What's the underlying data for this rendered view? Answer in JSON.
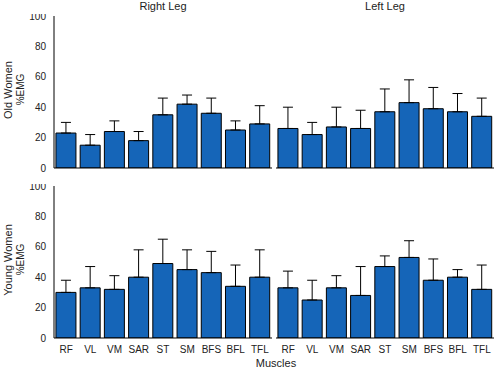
{
  "column_titles": [
    "Right Leg",
    "Left Leg"
  ],
  "row_titles": [
    "Old Women",
    "Young Women"
  ],
  "y_label": "%EMG",
  "x_label": "Muscles",
  "chart_data": [
    {
      "type": "bar",
      "categories": [
        "RF",
        "VL",
        "VM",
        "SAR",
        "ST",
        "SM",
        "BFS",
        "BFL",
        "TFL"
      ],
      "values": [
        23,
        15,
        24,
        18,
        35,
        42,
        36,
        25,
        29
      ],
      "errors": [
        7,
        7,
        7,
        6,
        11,
        6,
        10,
        6,
        12
      ],
      "color": "#1565b8",
      "ylim": [
        0,
        100
      ],
      "yticks": [
        0,
        20,
        40,
        60,
        80,
        100
      ],
      "grid": false,
      "tick_labels": "y"
    },
    {
      "type": "bar",
      "categories": [
        "RF",
        "VL",
        "VM",
        "SAR",
        "ST",
        "SM",
        "BFS",
        "BFL",
        "TFL"
      ],
      "values": [
        26,
        22,
        27,
        26,
        37,
        43,
        39,
        37,
        34
      ],
      "errors": [
        14,
        8,
        13,
        12,
        15,
        15,
        14,
        12,
        12
      ],
      "color": "#1565b8",
      "ylim": [
        0,
        100
      ],
      "yticks": [
        0,
        20,
        40,
        60,
        80,
        100
      ],
      "grid": false,
      "tick_labels": false
    },
    {
      "type": "bar",
      "categories": [
        "RF",
        "VL",
        "VM",
        "SAR",
        "ST",
        "SM",
        "BFS",
        "BFL",
        "TFL"
      ],
      "values": [
        30,
        33,
        32,
        40,
        49,
        45,
        43,
        34,
        40
      ],
      "errors": [
        8,
        14,
        9,
        18,
        16,
        13,
        14,
        14,
        18
      ],
      "color": "#1565b8",
      "ylim": [
        0,
        100
      ],
      "yticks": [
        0,
        20,
        40,
        60,
        80,
        100
      ],
      "grid": false,
      "tick_labels": true
    },
    {
      "type": "bar",
      "categories": [
        "RF",
        "VL",
        "VM",
        "SAR",
        "ST",
        "SM",
        "BFS",
        "BFL",
        "TFL"
      ],
      "values": [
        33,
        25,
        33,
        28,
        47,
        53,
        38,
        40,
        32
      ],
      "errors": [
        11,
        13,
        8,
        19,
        7,
        11,
        14,
        5,
        16
      ],
      "color": "#1565b8",
      "ylim": [
        0,
        100
      ],
      "yticks": [
        0,
        20,
        40,
        60,
        80,
        100
      ],
      "grid": false,
      "tick_labels": "x"
    }
  ]
}
